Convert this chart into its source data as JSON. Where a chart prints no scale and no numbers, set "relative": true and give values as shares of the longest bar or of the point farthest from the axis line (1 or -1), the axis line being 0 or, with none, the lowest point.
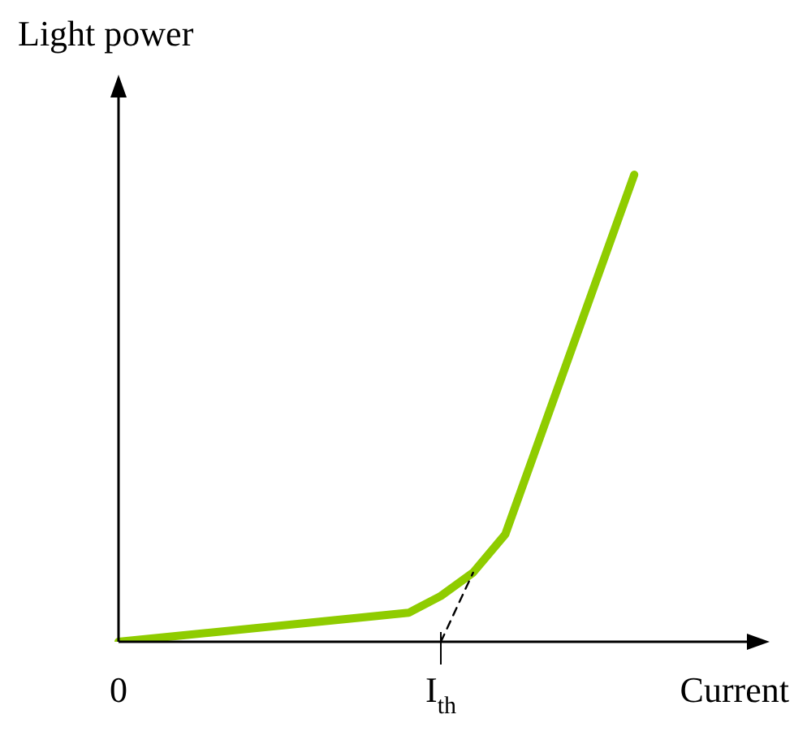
{
  "chart_data": {
    "type": "line",
    "relative": true,
    "xlabel": "Current",
    "ylabel": "Light power",
    "categories": [
      "0",
      null,
      null,
      null,
      null,
      null,
      null,
      null,
      null,
      null,
      "I$_{th}$",
      null,
      null,
      null,
      null,
      null,
      null,
      null,
      null,
      null,
      null
    ],
    "series": [
      {
        "color": "#8fcc00",
        "values": [
          0,
          null,
          null,
          null,
          null,
          null,
          null,
          null,
          null,
          0.062,
          0.098,
          0.148,
          0.23,
          null,
          null,
          null,
          1,
          null,
          null,
          null,
          null
        ]
      },
      {
        "color": "#000000",
        "line_style": "dashed",
        "values": [
          null,
          null,
          null,
          null,
          null,
          null,
          null,
          null,
          null,
          null,
          0,
          0.148,
          null,
          null,
          null,
          null,
          null,
          null,
          null,
          null,
          null
        ]
      }
    ],
    "marker": "none"
  }
}
